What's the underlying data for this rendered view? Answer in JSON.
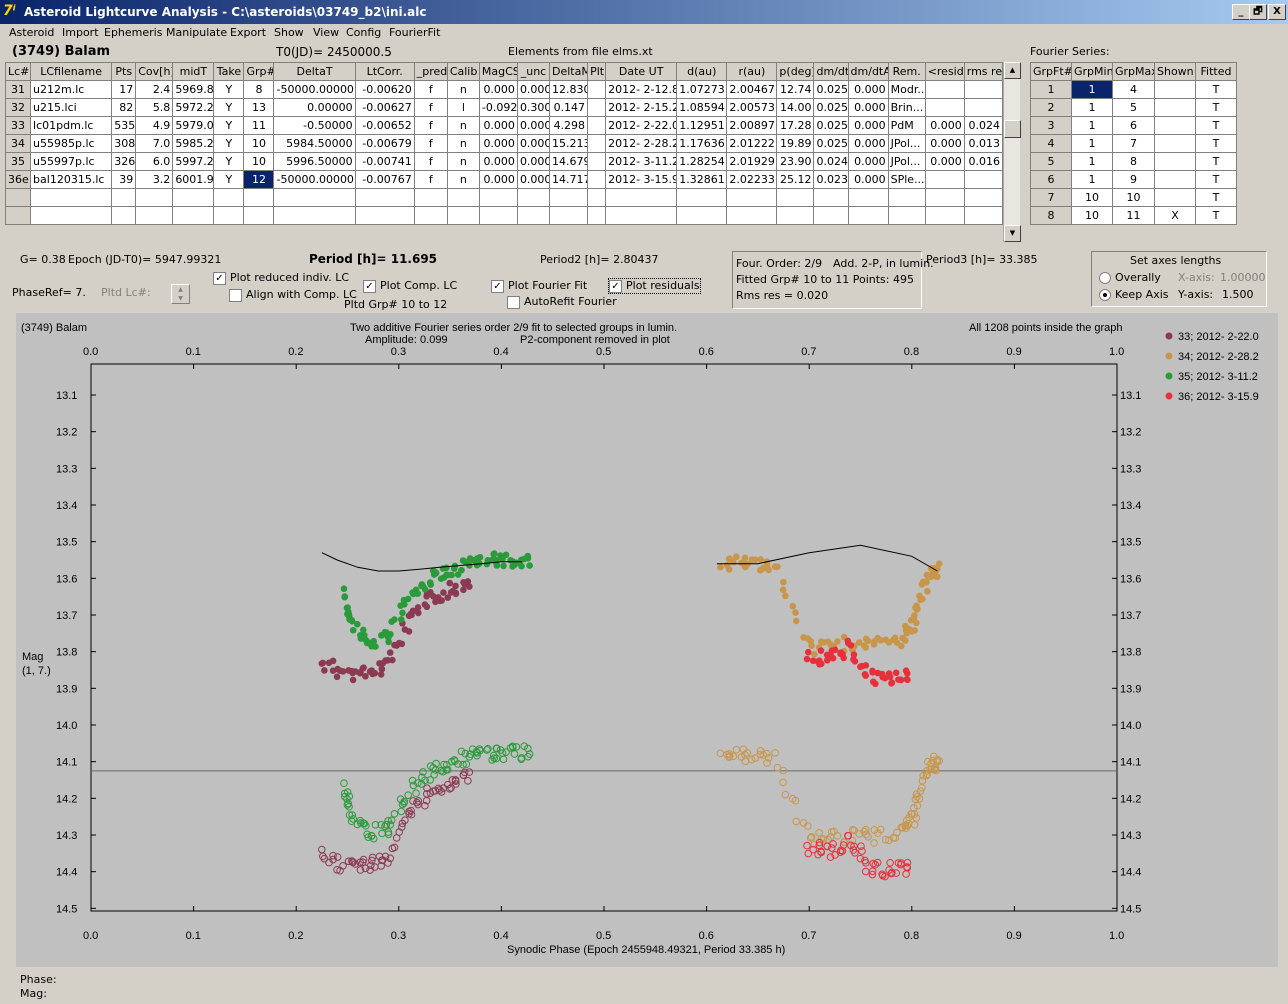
{
  "title": "Asteroid Lightcurve Analysis - C:\\asteroids\\03749_b2\\ini.alc",
  "window_buttons": [
    "_",
    "🗗",
    "X"
  ],
  "menu": [
    "Asteroid",
    "Import",
    "Ephemeris",
    "Manipulate",
    "Export",
    "Show",
    "View",
    "Config",
    "FourierFit"
  ],
  "header": {
    "asteroid": "(3749) Balam",
    "t0": "T0(JD)= 2450000.5",
    "elements": "Elements from file elms.xt",
    "fourier_series_label": "Fourier Series:"
  },
  "lc_table": {
    "columns": [
      "Lc#",
      "LCfilename",
      "Pts",
      "Cov[h]",
      "midT",
      "Take",
      "Grp#",
      "DeltaT",
      "LtCorr.",
      "_pred.",
      "Calib",
      "MagCS",
      "_unc",
      "DeltaM",
      "Plt",
      "Date UT",
      "d(au)",
      "r(au)",
      "p(deg)",
      "dm/dt",
      "dm/dtA",
      "Rem.",
      "<resid>",
      "rms res"
    ],
    "rows": [
      [
        "31",
        "u212m.lc",
        "17",
        "2.4",
        "5969.8",
        "Y",
        "8",
        "-50000.00000",
        "-0.00620",
        "f",
        "n",
        "0.000",
        "0.000",
        "12.830",
        "",
        "2012- 2-12.8",
        "1.07273",
        "2.00467",
        "12.74",
        "0.025",
        "0.000",
        "Modr...",
        "",
        ""
      ],
      [
        "32",
        "u215.lci",
        "82",
        "5.8",
        "5972.2",
        "Y",
        "13",
        "0.00000",
        "-0.00627",
        "f",
        "l",
        "-0.092",
        "0.300",
        "0.147",
        "",
        "2012- 2-15.2",
        "1.08594",
        "2.00573",
        "14.00",
        "0.025",
        "0.000",
        "Brin...",
        "",
        ""
      ],
      [
        "33",
        "lc01pdm.lc",
        "535",
        "4.9",
        "5979.0",
        "Y",
        "11",
        "-0.50000",
        "-0.00652",
        "f",
        "n",
        "0.000",
        "0.000",
        "4.298",
        "",
        "2012- 2-22.0",
        "1.12951",
        "2.00897",
        "17.28",
        "0.025",
        "0.000",
        "PdM",
        "0.000",
        "0.024"
      ],
      [
        "34",
        "u55985p.lc",
        "308",
        "7.0",
        "5985.2",
        "Y",
        "10",
        "5984.50000",
        "-0.00679",
        "f",
        "n",
        "0.000",
        "0.000",
        "15.213",
        "",
        "2012- 2-28.2",
        "1.17636",
        "2.01222",
        "19.89",
        "0.025",
        "0.000",
        "JPol...",
        "0.000",
        "0.013"
      ],
      [
        "35",
        "u55997p.lc",
        "326",
        "6.0",
        "5997.2",
        "Y",
        "10",
        "5996.50000",
        "-0.00741",
        "f",
        "n",
        "0.000",
        "0.000",
        "14.679",
        "",
        "2012- 3-11.2",
        "1.28254",
        "2.01929",
        "23.90",
        "0.024",
        "0.000",
        "JPol...",
        "0.000",
        "0.016"
      ],
      [
        "36e",
        "bal120315.lc",
        "39",
        "3.2",
        "6001.9",
        "Y",
        "12",
        "-50000.00000",
        "-0.00767",
        "f",
        "n",
        "0.000",
        "0.000",
        "14.717",
        "",
        "2012- 3-15.9",
        "1.32861",
        "2.02233",
        "25.12",
        "0.023",
        "0.000",
        "SPle...",
        "",
        ""
      ]
    ]
  },
  "fourier_table": {
    "columns": [
      "GrpFt#",
      "GrpMin",
      "GrpMax",
      "Shown",
      "Fitted"
    ],
    "rows": [
      [
        "1",
        "1",
        "4",
        "",
        "T"
      ],
      [
        "2",
        "1",
        "5",
        "",
        "T"
      ],
      [
        "3",
        "1",
        "6",
        "",
        "T"
      ],
      [
        "4",
        "1",
        "7",
        "",
        "T"
      ],
      [
        "5",
        "1",
        "8",
        "",
        "T"
      ],
      [
        "6",
        "1",
        "9",
        "",
        "T"
      ],
      [
        "7",
        "10",
        "10",
        "",
        "T"
      ],
      [
        "8",
        "10",
        "11",
        "X",
        "T"
      ]
    ]
  },
  "info": {
    "g": "G= 0.38",
    "epoch": "Epoch (JD-T0)= 5947.99321",
    "period": "Period [h]= 11.695",
    "period2": "Period2 [h]= 2.80437",
    "period3": "Period3 [h]= 33.385",
    "phaseref": "PhaseRef= 7.",
    "pltd_lc": "Pltd Lc#:",
    "pltd_grp": "Pltd Grp#  10 to   12"
  },
  "checkboxes": {
    "plot_reduced": {
      "label": "Plot reduced indiv. LC",
      "checked": true
    },
    "align_comp": {
      "label": "Align with Comp. LC",
      "checked": false
    },
    "plot_comp": {
      "label": "Plot Comp. LC",
      "checked": true
    },
    "plot_fourier": {
      "label": "Plot Fourier Fit",
      "checked": true
    },
    "autorefit": {
      "label": "AutoRefit Fourier",
      "checked": false
    },
    "plot_residuals": {
      "label": "Plot residuals",
      "checked": true
    }
  },
  "fit_box": {
    "line1a": "Four. Order:  2/9",
    "line1b": "Add. 2-P, in lumin.",
    "line2": "Fitted Grp# 10 to 11 Points: 495",
    "line3": "Rms res      = 0.020"
  },
  "axes_box": {
    "title": "Set axes lengths",
    "overally": "Overally",
    "keep_axis": "Keep Axis",
    "xaxis_label": "X-axis:",
    "xaxis_value": "1.00000",
    "yaxis_label": "Y-axis:",
    "yaxis_value": "1.500"
  },
  "plot": {
    "object": "(3749) Balam",
    "caption1": "Two additive Fourier series order 2/9 fit to selected groups in lumin.",
    "caption2a": "Amplitude: 0.099",
    "caption2b": "P2-component removed in plot",
    "points_note": "All 1208 points inside the graph",
    "ylabel1": "Mag",
    "ylabel2": "(1, 7.)",
    "xlabel": "Synodic Phase (Epoch 2455948.49321, Period 33.385 h)",
    "legend": [
      {
        "label": "33; 2012- 2-22.0",
        "color": "#8b3a52"
      },
      {
        "label": "34; 2012- 2-28.2",
        "color": "#c8964a"
      },
      {
        "label": "35; 2012- 3-11.2",
        "color": "#2a9a3a"
      },
      {
        "label": "36; 2012- 3-15.9",
        "color": "#e8303c"
      }
    ]
  },
  "chart_data": {
    "type": "scatter",
    "xlim": [
      0,
      1.0
    ],
    "ylim": [
      14.5,
      13.0
    ],
    "xticks": [
      "0.0",
      "0.1",
      "0.2",
      "0.3",
      "0.4",
      "0.5",
      "0.6",
      "0.7",
      "0.8",
      "0.9",
      "1.0"
    ],
    "yticks": [
      "13.1",
      "13.2",
      "13.3",
      "13.4",
      "13.5",
      "13.6",
      "13.7",
      "13.8",
      "13.9",
      "14.0",
      "14.1",
      "14.2",
      "14.3",
      "14.4",
      "14.5"
    ],
    "residual_baseline": 14.125,
    "series": [
      {
        "name": "33; 2012- 2-22.0",
        "x": [
          0.225,
          0.25,
          0.27,
          0.29,
          0.31,
          0.33,
          0.35,
          0.37
        ],
        "y": [
          13.83,
          13.86,
          13.86,
          13.83,
          13.72,
          13.66,
          13.63,
          13.62
        ]
      },
      {
        "name": "34; 2012- 2-28.2",
        "x": [
          0.615,
          0.64,
          0.665,
          0.7,
          0.73,
          0.76,
          0.79,
          0.8,
          0.81,
          0.82,
          0.825
        ],
        "y": [
          13.56,
          13.56,
          13.56,
          13.79,
          13.78,
          13.78,
          13.77,
          13.73,
          13.65,
          13.58,
          13.58
        ]
      },
      {
        "name": "35; 2012- 3-11.2",
        "x": [
          0.245,
          0.255,
          0.27,
          0.29,
          0.31,
          0.33,
          0.35,
          0.37,
          0.39,
          0.41,
          0.43
        ],
        "y": [
          13.64,
          13.73,
          13.77,
          13.76,
          13.66,
          13.6,
          13.58,
          13.56,
          13.55,
          13.55,
          13.55
        ]
      },
      {
        "name": "36; 2012- 3-15.9",
        "x": [
          0.7,
          0.72,
          0.74,
          0.76,
          0.78,
          0.8
        ],
        "y": [
          13.81,
          13.82,
          13.79,
          13.87,
          13.87,
          13.86
        ]
      }
    ],
    "fourier_fit": [
      {
        "x": [
          0.225,
          0.24,
          0.26,
          0.28,
          0.3,
          0.32,
          0.34,
          0.36,
          0.38,
          0.4,
          0.42
        ],
        "y": [
          13.53,
          13.55,
          13.57,
          13.58,
          13.58,
          13.575,
          13.57,
          13.565,
          13.56,
          13.555,
          13.555
        ]
      },
      {
        "x": [
          0.61,
          0.65,
          0.7,
          0.75,
          0.8,
          0.825
        ],
        "y": [
          13.56,
          13.56,
          13.53,
          13.51,
          13.54,
          13.58
        ]
      }
    ]
  },
  "status": {
    "phase": "Phase:",
    "mag": "Mag:"
  }
}
